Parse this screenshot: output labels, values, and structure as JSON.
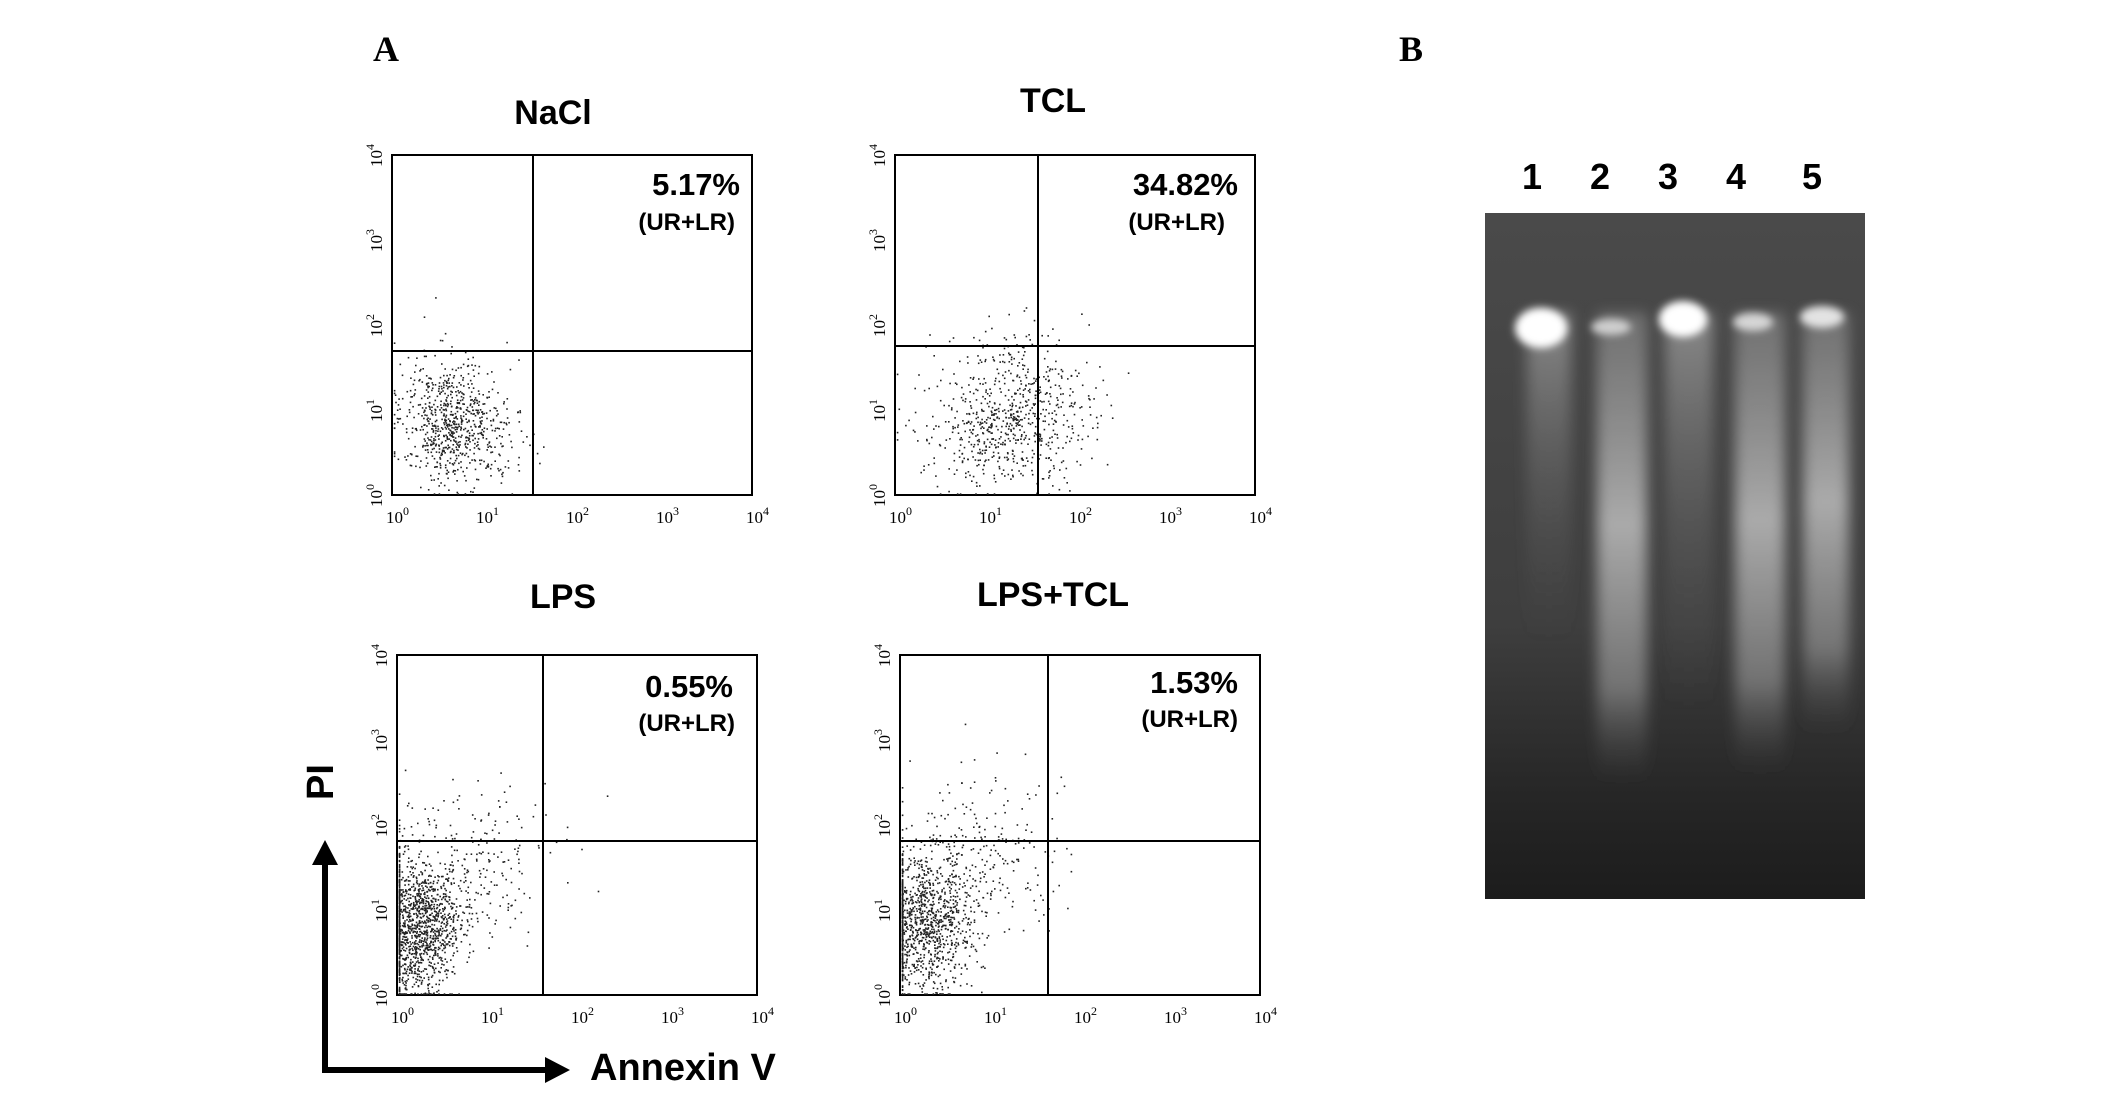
{
  "panels": {
    "a_label": "A",
    "b_label": "B"
  },
  "flow": {
    "x_axis_label": "Annexin V",
    "y_axis_label": "PI",
    "tick_base": "10",
    "tick_exponents": [
      "0",
      "1",
      "2",
      "3",
      "4"
    ],
    "plots": [
      {
        "title": "NaCl",
        "percent": "5.17%",
        "quadrant": "(UR+LR)"
      },
      {
        "title": "TCL",
        "percent": "34.82%",
        "quadrant": "(UR+LR)"
      },
      {
        "title": "LPS",
        "percent": "0.55%",
        "quadrant": "(UR+LR)"
      },
      {
        "title": "LPS+TCL",
        "percent": "1.53%",
        "quadrant": "(UR+LR)"
      }
    ]
  },
  "gel": {
    "lanes": [
      "1",
      "2",
      "3",
      "4",
      "5"
    ]
  },
  "colors": {
    "gel_background": "#3a3a3a",
    "dots": "#222222"
  }
}
